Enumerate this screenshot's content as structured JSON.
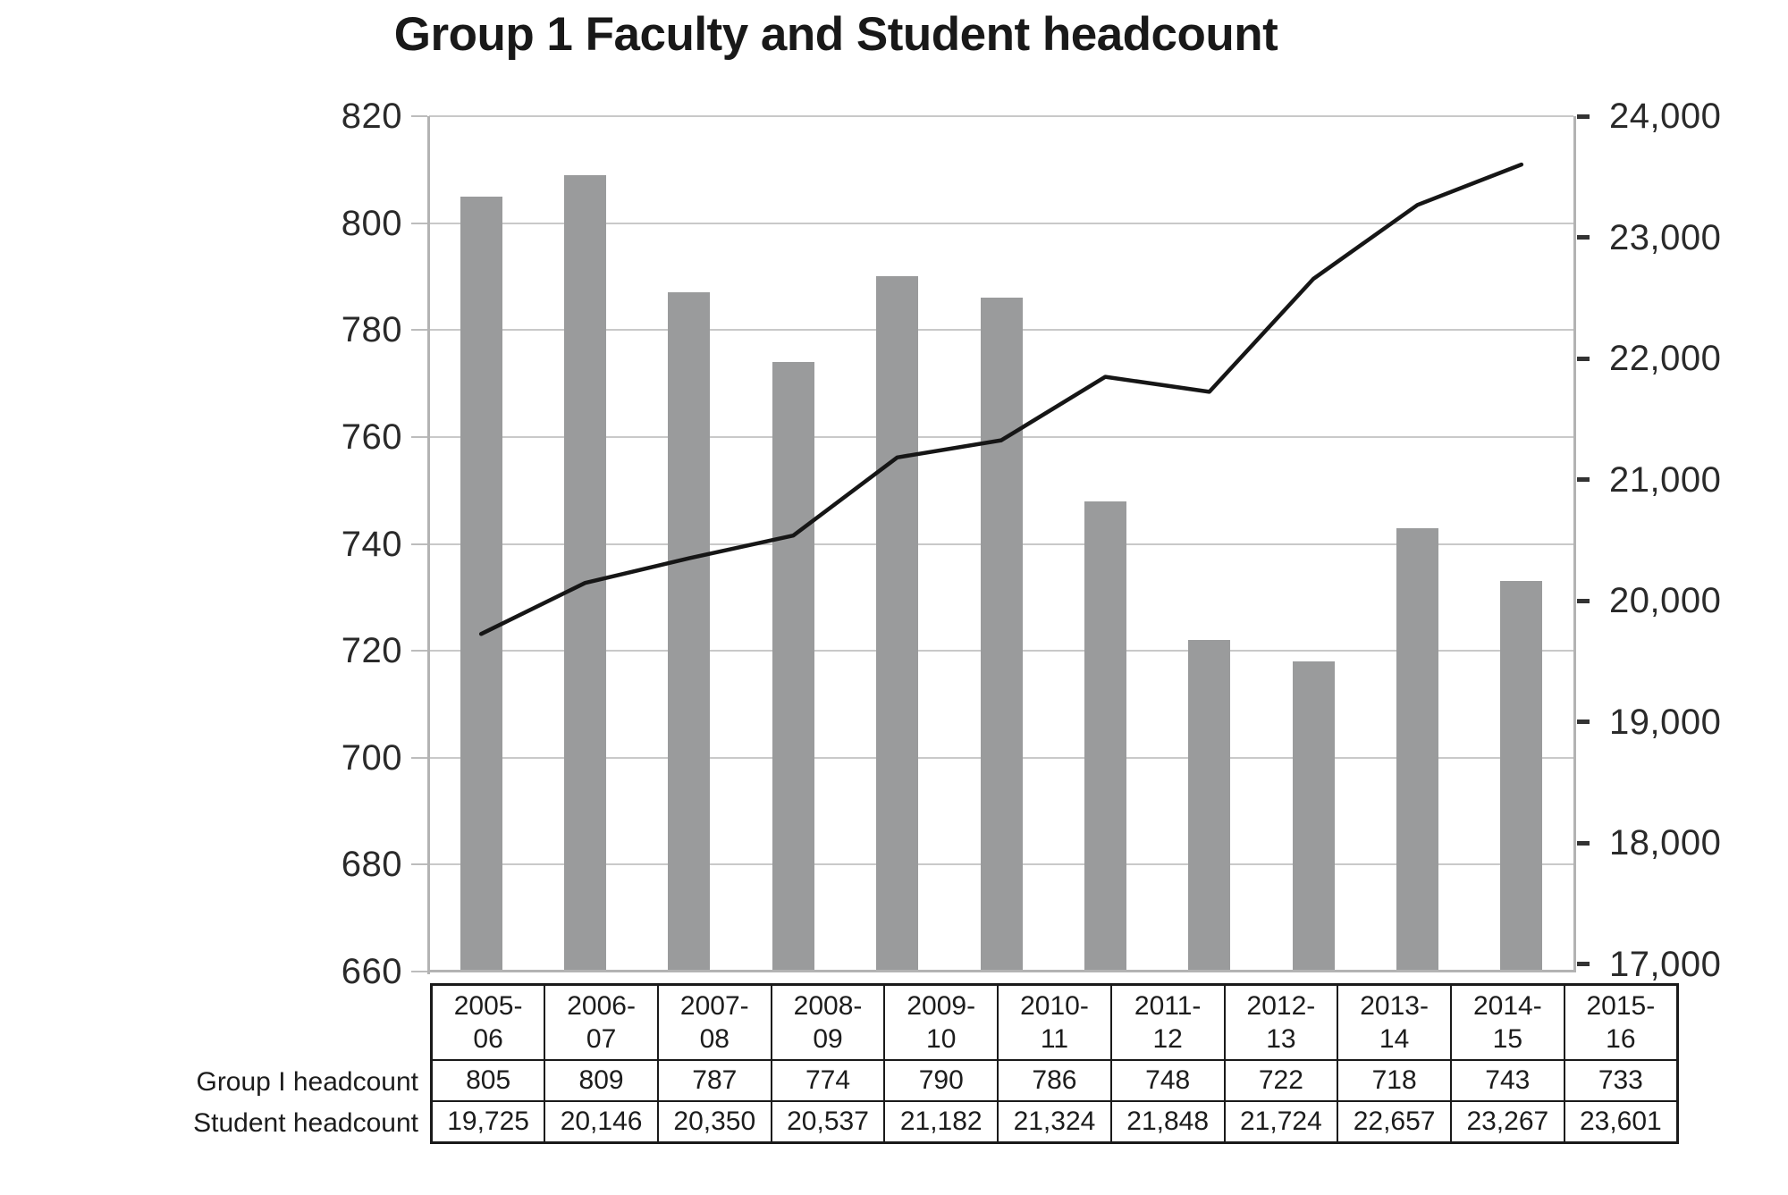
{
  "title": "Group 1 Faculty and Student headcount",
  "chart_data": {
    "type": "bar",
    "subtype": "combo-bar-line",
    "title": "Group 1 Faculty and Student headcount",
    "categories": [
      "2005-06",
      "2006-07",
      "2007-08",
      "2008-09",
      "2009-10",
      "2010-11",
      "2011-12",
      "2012-13",
      "2013-14",
      "2014-15",
      "2015-16"
    ],
    "series": [
      {
        "name": "Group I headcount",
        "type": "bar",
        "axis": "left",
        "values": [
          805,
          809,
          787,
          774,
          790,
          786,
          748,
          722,
          718,
          743,
          733
        ]
      },
      {
        "name": "Student headcount",
        "type": "line",
        "axis": "right",
        "values": [
          19725,
          20146,
          20350,
          20537,
          21182,
          21324,
          21848,
          21724,
          22657,
          23267,
          23601
        ]
      }
    ],
    "left_axis": {
      "min": 660,
      "max": 820,
      "tick_step": 20,
      "tick_labels": [
        "820",
        "800",
        "780",
        "760",
        "740",
        "720",
        "700",
        "680",
        "660"
      ]
    },
    "right_axis": {
      "min": 17000,
      "max": 24000,
      "tick_step": 1000,
      "tick_labels": [
        "24,000",
        "23,000",
        "22,000",
        "21,000",
        "20,000",
        "19,000",
        "18,000",
        "17,000"
      ]
    },
    "grid": true,
    "legend_position": "none"
  },
  "table": {
    "row_labels": [
      "Group I headcount",
      "Student headcount"
    ],
    "columns": [
      "2005-06",
      "2006-07",
      "2007-08",
      "2008-09",
      "2009-10",
      "2010-11",
      "2011-12",
      "2012-13",
      "2013-14",
      "2014-15",
      "2015-16"
    ],
    "rows": [
      [
        "805",
        "809",
        "787",
        "774",
        "790",
        "786",
        "748",
        "722",
        "718",
        "743",
        "733"
      ],
      [
        "19,725",
        "20,146",
        "20,350",
        "20,537",
        "21,182",
        "21,324",
        "21,848",
        "21,724",
        "22,657",
        "23,267",
        "23,601"
      ]
    ]
  },
  "colors": {
    "bar": "#9a9b9c",
    "line": "#161616",
    "grid": "#c9c9c9",
    "axis": "#b3b3b3",
    "right_tick": "#333333",
    "table_border": "#1a1a1a",
    "text": "#1f1f1f"
  }
}
